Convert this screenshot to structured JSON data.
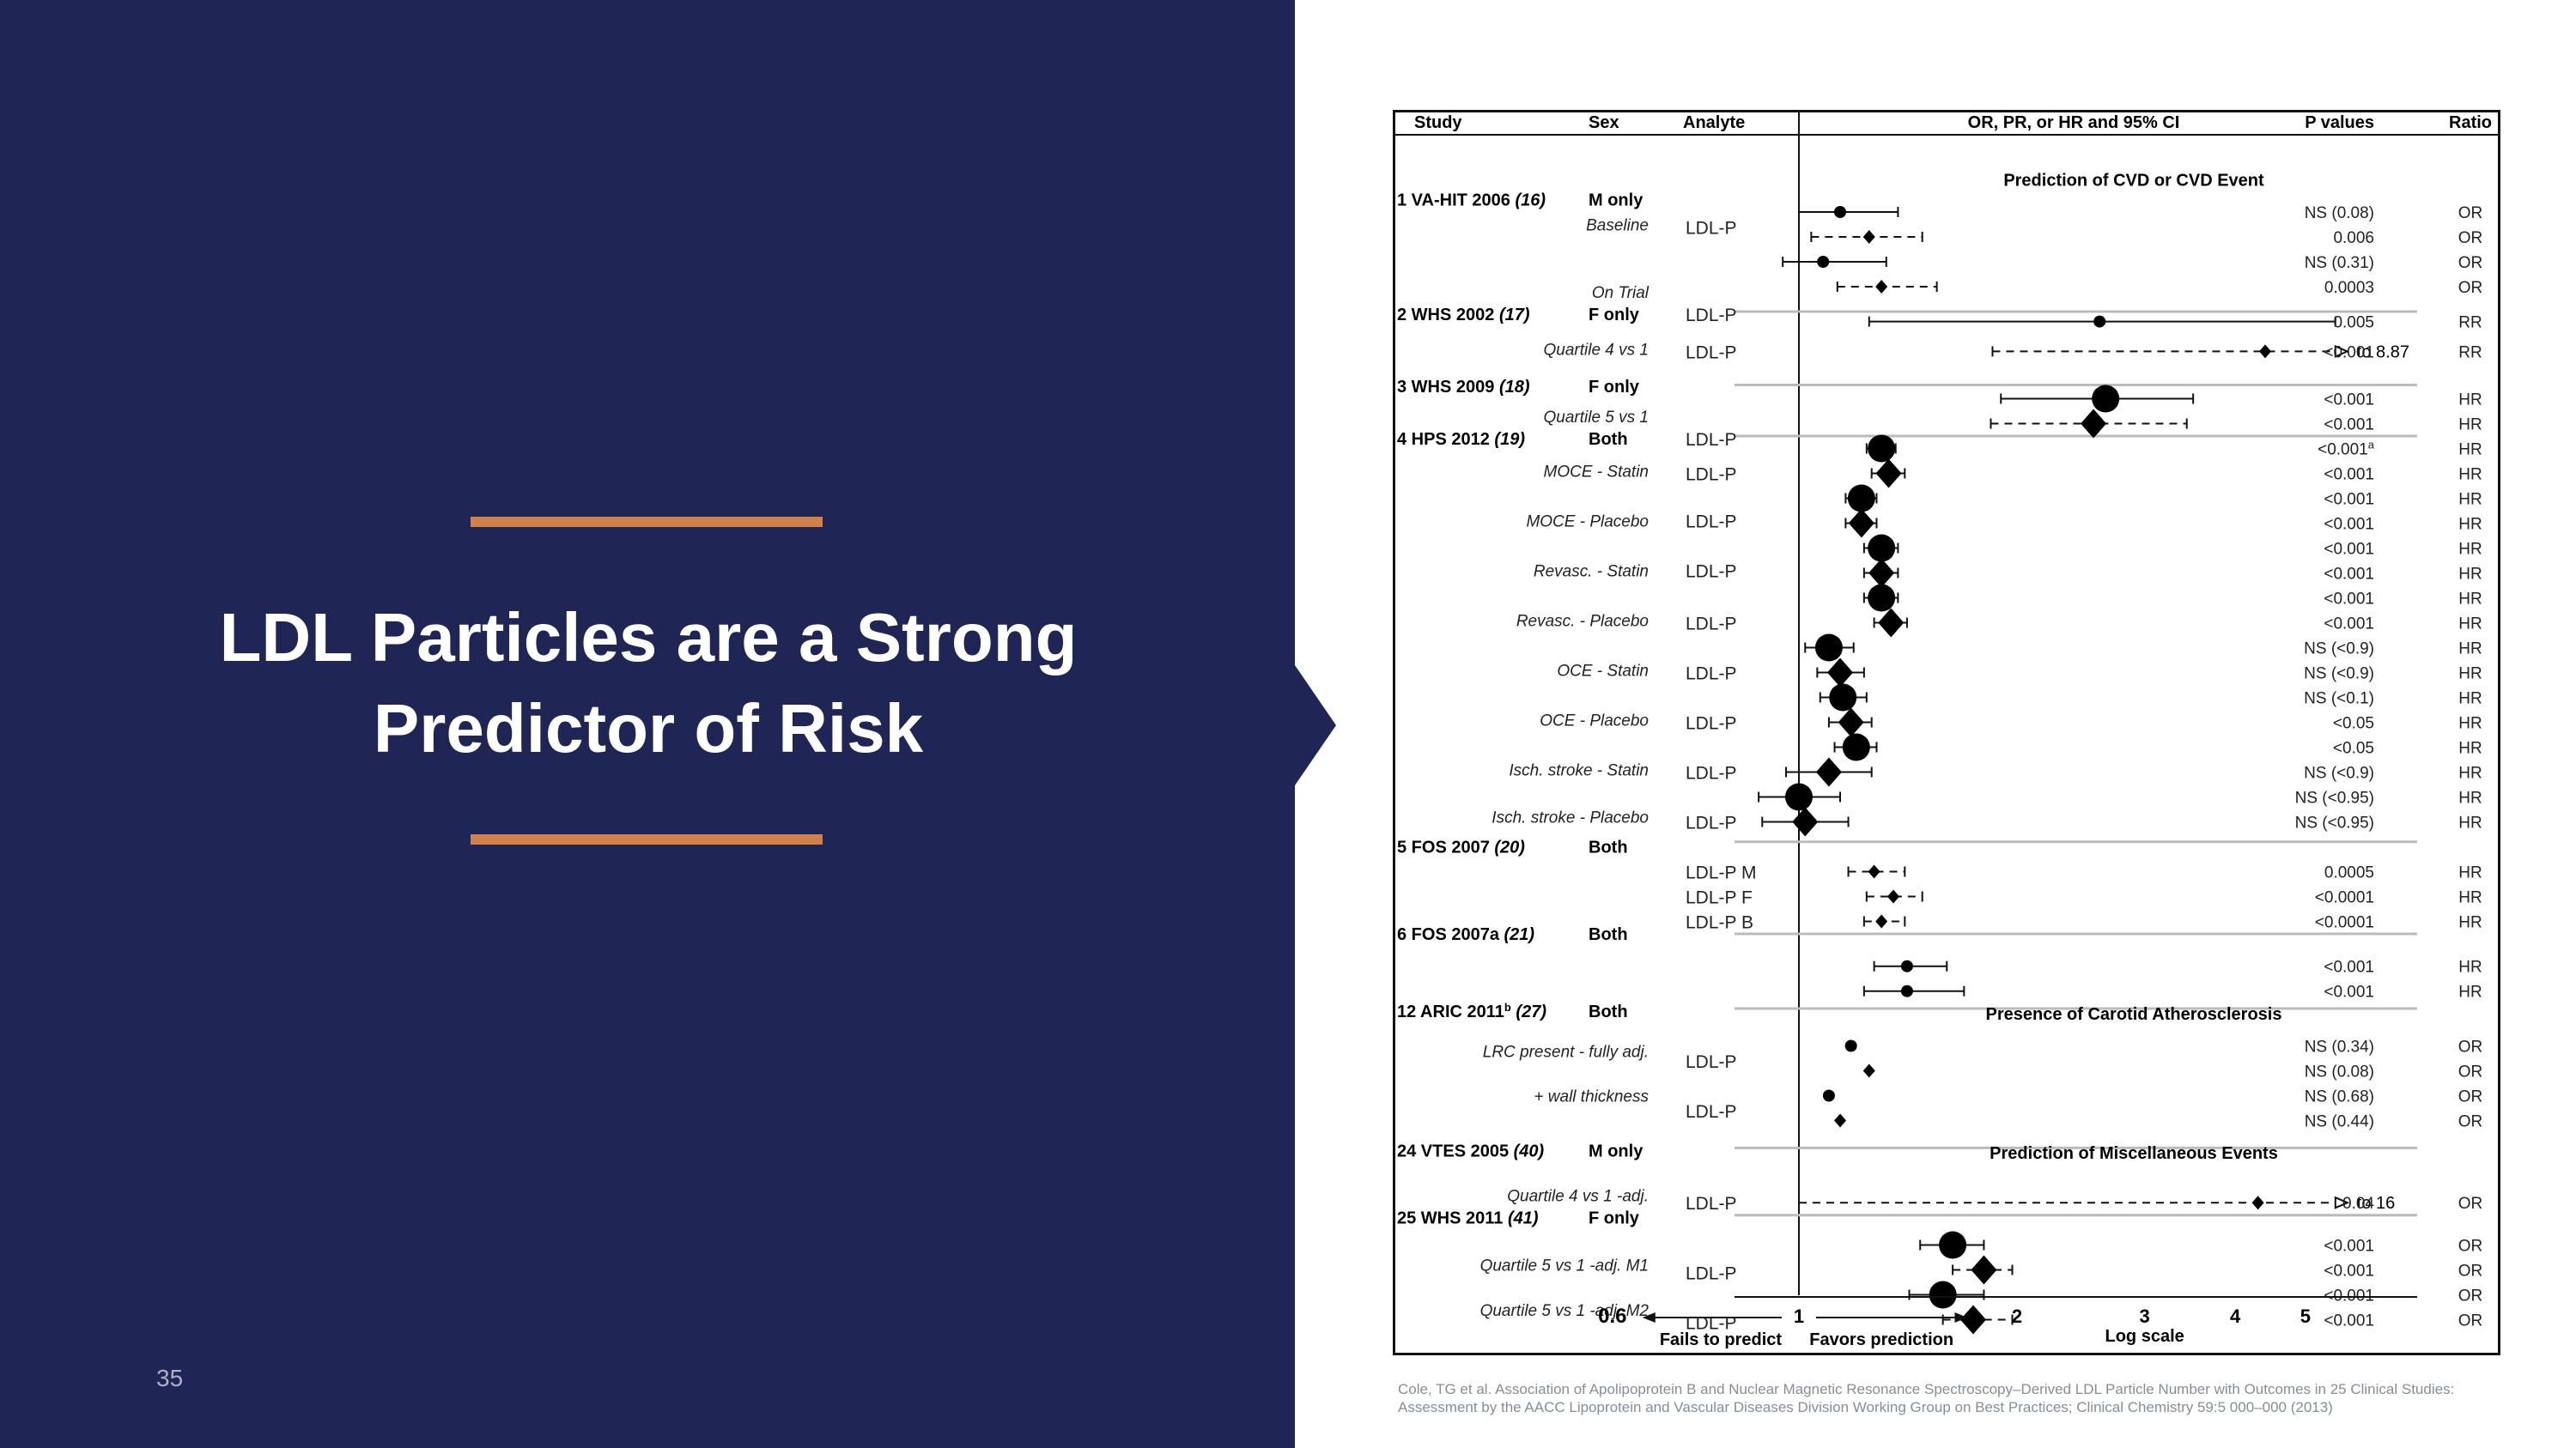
{
  "slide": {
    "title_line1": "LDL Particles are a Strong",
    "title_line2": "Predictor of Risk",
    "page_number": "35",
    "citation": "Cole, TG et al. Association of Apolipoprotein B and Nuclear Magnetic Resonance Spectroscopy–Derived LDL Particle Number with Outcomes in 25 Clinical Studies: Assessment by the AACC Lipoprotein and Vascular Diseases Division Working Group on Best Practices; Clinical Chemistry 59:5 000–000 (2013)",
    "colors": {
      "panel": "#1f2655",
      "accent": "#d0824a",
      "title": "#ffffff"
    }
  },
  "chart_data": {
    "type": "forest",
    "x_scale": "log",
    "xlim": [
      0.6,
      5.5
    ],
    "x_ticks": [
      0.6,
      1,
      2,
      3,
      4,
      5
    ],
    "reference_line": 1,
    "headers": {
      "study": "Study",
      "sex": "Sex",
      "analyte": "Analyte",
      "ci": "OR, PR, or HR and 95% CI",
      "p": "P values",
      "ratio": "Ratio"
    },
    "sections": [
      {
        "label": "Prediction of CVD or CVD Event",
        "row": 0.7
      },
      {
        "label": "Presence of Carotid Atherosclerosis",
        "row": 34.2
      },
      {
        "label": "Prediction of Miscellaneous Events",
        "row": 39.8
      }
    ],
    "axis_labels": {
      "left": "Fails to predict",
      "right": "Favors prediction",
      "scale": "Log scale",
      "left_end": "0.6"
    },
    "studies": [
      {
        "label": "1 VA-HIT 2006",
        "ref": "(16)",
        "sex": "M only",
        "row": 1.5
      },
      {
        "label": "2 WHS 2002",
        "ref": "(17)",
        "sex": "F only",
        "row": 6.1
      },
      {
        "label": "3 WHS 2009",
        "ref": "(18)",
        "sex": "F only",
        "row": 9.0
      },
      {
        "label": "4 HPS 2012",
        "ref": "(19)",
        "sex": "Both",
        "row": 11.1
      },
      {
        "label": "5 FOS 2007",
        "ref": "(20)",
        "sex": "Both",
        "row": 27.5
      },
      {
        "label": "6 FOS 2007a",
        "ref": "(21)",
        "sex": "Both",
        "row": 31.0
      },
      {
        "label": "12 ARIC 2011",
        "sup": "b",
        "ref": "(27)",
        "sex": "Both",
        "row": 34.1
      },
      {
        "label": "24 VTES 2005",
        "ref": "(40)",
        "sex": "M only",
        "row": 39.7
      },
      {
        "label": "25 WHS 2011",
        "ref": "(41)",
        "sex": "F only",
        "row": 42.4
      }
    ],
    "subgroups": [
      {
        "text": "Baseline",
        "row": 2.5
      },
      {
        "text": "On Trial",
        "row": 5.2
      },
      {
        "text": "Quartile 4 vs 1",
        "row": 7.5
      },
      {
        "text": "Quartile 5 vs 1",
        "row": 10.2
      },
      {
        "text": "MOCE - Statin",
        "row": 12.4
      },
      {
        "text": "MOCE - Placebo",
        "row": 14.4
      },
      {
        "text": "Revasc. - Statin",
        "row": 16.4
      },
      {
        "text": "Revasc. - Placebo",
        "row": 18.4
      },
      {
        "text": "OCE - Statin",
        "row": 20.4
      },
      {
        "text": "OCE - Placebo",
        "row": 22.4
      },
      {
        "text": "Isch. stroke - Statin",
        "row": 24.4
      },
      {
        "text": "Isch. stroke - Placebo",
        "row": 26.3
      },
      {
        "text": "LRC present - fully adj.",
        "row": 35.7
      },
      {
        "text": "+ wall  thickness",
        "row": 37.5
      },
      {
        "text": "Quartile 4 vs 1 -adj.",
        "row": 41.5
      },
      {
        "text": "Quartile 5 vs 1 -adj. M1",
        "row": 44.3
      },
      {
        "text": "Quartile 5 vs 1 -adj. M2",
        "row": 46.1
      }
    ],
    "analytes": [
      {
        "text": "LDL-P",
        "row": 2.6
      },
      {
        "text": "LDL-P",
        "row": 6.1
      },
      {
        "text": "LDL-P",
        "row": 7.6
      },
      {
        "text": "LDL-P",
        "row": 11.1
      },
      {
        "text": "LDL-P",
        "row": 12.5
      },
      {
        "text": "LDL-P",
        "row": 14.4
      },
      {
        "text": "LDL-P",
        "row": 16.4
      },
      {
        "text": "LDL-P",
        "row": 18.5
      },
      {
        "text": "LDL-P",
        "row": 20.5
      },
      {
        "text": "LDL-P",
        "row": 22.5
      },
      {
        "text": "LDL-P",
        "row": 24.5
      },
      {
        "text": "LDL-P",
        "row": 26.5
      },
      {
        "text": "LDL-P M",
        "row": 28.5
      },
      {
        "text": "LDL-P  F",
        "row": 29.5
      },
      {
        "text": "LDL-P B",
        "row": 30.5
      },
      {
        "text": "LDL-P",
        "row": 36.1
      },
      {
        "text": "LDL-P",
        "row": 38.1
      },
      {
        "text": "LDL-P",
        "row": 41.8
      },
      {
        "text": "LDL-P",
        "row": 44.6
      },
      {
        "text": "LDL-P",
        "row": 46.6
      }
    ],
    "rows": [
      {
        "row": 2.0,
        "est": 1.14,
        "lo": 1.0,
        "hi": 1.37,
        "marker": "dot",
        "style": "solid",
        "p": "NS (0.08)",
        "ratio": "OR"
      },
      {
        "row": 3.0,
        "est": 1.25,
        "lo": 1.04,
        "hi": 1.48,
        "marker": "small-diamond",
        "style": "dashed",
        "p": "0.006",
        "ratio": "OR"
      },
      {
        "row": 4.0,
        "est": 1.08,
        "lo": 0.95,
        "hi": 1.32,
        "marker": "dot",
        "style": "solid",
        "p": "NS (0.31)",
        "ratio": "OR"
      },
      {
        "row": 5.0,
        "est": 1.3,
        "lo": 1.13,
        "hi": 1.55,
        "marker": "small-diamond",
        "style": "dashed",
        "p": "0.0003",
        "ratio": "OR"
      },
      {
        "row": 6.4,
        "est": 2.6,
        "lo": 1.25,
        "hi": 5.5,
        "marker": "dot",
        "style": "solid",
        "p": "0.005",
        "ratio": "RR"
      },
      {
        "row": 7.6,
        "est": 4.4,
        "lo": 1.85,
        "hi": 5.5,
        "marker": "small-diamond",
        "style": "dashed",
        "p": "<0.001",
        "ratio": "RR",
        "note": "to 8.87",
        "arrow": true
      },
      {
        "row": 9.5,
        "est": 2.65,
        "lo": 1.9,
        "hi": 3.5,
        "marker": "big-dot",
        "style": "solid",
        "p": "<0.001",
        "ratio": "HR"
      },
      {
        "row": 10.5,
        "est": 2.55,
        "lo": 1.84,
        "hi": 3.43,
        "marker": "big-diamond",
        "style": "dashed",
        "p": "<0.001",
        "ratio": "HR"
      },
      {
        "row": 11.5,
        "est": 1.3,
        "lo": 1.24,
        "hi": 1.36,
        "marker": "big-dot",
        "style": "solid",
        "p": "<0.001",
        "p_sup": "a",
        "ratio": "HR"
      },
      {
        "row": 12.5,
        "est": 1.33,
        "lo": 1.26,
        "hi": 1.4,
        "marker": "big-diamond",
        "style": "solid",
        "p": "<0.001",
        "ratio": "HR"
      },
      {
        "row": 13.5,
        "est": 1.22,
        "lo": 1.16,
        "hi": 1.28,
        "marker": "big-dot",
        "style": "solid",
        "p": "<0.001",
        "ratio": "HR"
      },
      {
        "row": 14.5,
        "est": 1.22,
        "lo": 1.16,
        "hi": 1.28,
        "marker": "big-diamond",
        "style": "solid",
        "p": "<0.001",
        "ratio": "HR"
      },
      {
        "row": 15.5,
        "est": 1.3,
        "lo": 1.23,
        "hi": 1.37,
        "marker": "big-dot",
        "style": "solid",
        "p": "<0.001",
        "ratio": "HR"
      },
      {
        "row": 16.5,
        "est": 1.3,
        "lo": 1.23,
        "hi": 1.37,
        "marker": "big-diamond",
        "style": "solid",
        "p": "<0.001",
        "ratio": "HR"
      },
      {
        "row": 17.5,
        "est": 1.3,
        "lo": 1.23,
        "hi": 1.37,
        "marker": "big-dot",
        "style": "solid",
        "p": "<0.001",
        "ratio": "HR"
      },
      {
        "row": 18.5,
        "est": 1.34,
        "lo": 1.27,
        "hi": 1.41,
        "marker": "big-diamond",
        "style": "solid",
        "p": "<0.001",
        "ratio": "HR"
      },
      {
        "row": 19.5,
        "est": 1.1,
        "lo": 1.02,
        "hi": 1.19,
        "marker": "big-dot",
        "style": "solid",
        "p": "NS (<0.9)",
        "ratio": "HR"
      },
      {
        "row": 20.5,
        "est": 1.14,
        "lo": 1.06,
        "hi": 1.23,
        "marker": "big-diamond",
        "style": "solid",
        "p": "NS (<0.9)",
        "ratio": "HR"
      },
      {
        "row": 21.5,
        "est": 1.15,
        "lo": 1.07,
        "hi": 1.24,
        "marker": "big-dot",
        "style": "solid",
        "p": "NS (<0.1)",
        "ratio": "HR"
      },
      {
        "row": 22.5,
        "est": 1.18,
        "lo": 1.1,
        "hi": 1.26,
        "marker": "big-diamond",
        "style": "solid",
        "p": "<0.05",
        "ratio": "HR"
      },
      {
        "row": 23.5,
        "est": 1.2,
        "lo": 1.12,
        "hi": 1.28,
        "marker": "big-dot",
        "style": "solid",
        "p": "<0.05",
        "ratio": "HR"
      },
      {
        "row": 24.5,
        "est": 1.1,
        "lo": 0.96,
        "hi": 1.26,
        "marker": "big-diamond",
        "style": "solid",
        "p": "NS (<0.9)",
        "ratio": "HR"
      },
      {
        "row": 25.5,
        "est": 1.0,
        "lo": 0.88,
        "hi": 1.14,
        "marker": "big-dot",
        "style": "solid",
        "p": "NS (<0.95)",
        "ratio": "HR"
      },
      {
        "row": 26.5,
        "est": 1.02,
        "lo": 0.89,
        "hi": 1.17,
        "marker": "big-diamond",
        "style": "solid",
        "p": "NS (<0.95)",
        "ratio": "HR"
      },
      {
        "row": 28.5,
        "est": 1.27,
        "lo": 1.17,
        "hi": 1.4,
        "marker": "small-diamond",
        "style": "dashed",
        "p": "0.0005",
        "ratio": "HR"
      },
      {
        "row": 29.5,
        "est": 1.35,
        "lo": 1.24,
        "hi": 1.48,
        "marker": "small-diamond",
        "style": "dashed",
        "p": "<0.0001",
        "ratio": "HR"
      },
      {
        "row": 30.5,
        "est": 1.3,
        "lo": 1.23,
        "hi": 1.4,
        "marker": "small-diamond",
        "style": "dashed",
        "p": "<0.0001",
        "ratio": "HR"
      },
      {
        "row": 32.3,
        "est": 1.41,
        "lo": 1.27,
        "hi": 1.6,
        "marker": "dot",
        "style": "solid",
        "p": "<0.001",
        "ratio": "HR"
      },
      {
        "row": 33.3,
        "est": 1.41,
        "lo": 1.23,
        "hi": 1.69,
        "marker": "dot",
        "style": "solid",
        "p": "<0.001",
        "ratio": "HR"
      },
      {
        "row": 35.5,
        "est": 1.18,
        "lo": null,
        "hi": null,
        "marker": "dot",
        "style": "none",
        "p": "NS (0.34)",
        "ratio": "OR"
      },
      {
        "row": 36.5,
        "est": 1.25,
        "lo": null,
        "hi": null,
        "marker": "small-diamond",
        "style": "none",
        "p": "NS (0.08)",
        "ratio": "OR"
      },
      {
        "row": 37.5,
        "est": 1.1,
        "lo": null,
        "hi": null,
        "marker": "dot",
        "style": "none",
        "p": "NS (0.68)",
        "ratio": "OR"
      },
      {
        "row": 38.5,
        "est": 1.14,
        "lo": null,
        "hi": null,
        "marker": "small-diamond",
        "style": "none",
        "p": "NS (0.44)",
        "ratio": "OR"
      },
      {
        "row": 41.8,
        "est": 4.3,
        "lo": 1.0,
        "hi": 5.5,
        "marker": "small-diamond",
        "style": "dashed",
        "p": "0.04",
        "ratio": "OR",
        "note": "to 16",
        "arrow": true
      },
      {
        "row": 43.5,
        "est": 1.63,
        "lo": 1.47,
        "hi": 1.8,
        "marker": "big-dot",
        "style": "solid",
        "p": "<0.001",
        "ratio": "OR"
      },
      {
        "row": 44.5,
        "est": 1.8,
        "lo": 1.63,
        "hi": 1.97,
        "marker": "big-diamond",
        "style": "dashed",
        "p": "<0.001",
        "ratio": "OR"
      },
      {
        "row": 45.5,
        "est": 1.58,
        "lo": 1.42,
        "hi": 1.8,
        "marker": "big-dot",
        "style": "solid",
        "p": "<0.001",
        "ratio": "OR"
      },
      {
        "row": 46.5,
        "est": 1.74,
        "lo": 1.58,
        "hi": 1.97,
        "marker": "big-diamond",
        "style": "dashed",
        "p": "<0.001",
        "ratio": "OR"
      }
    ],
    "dividers": [
      6.0,
      8.95,
      11.0,
      27.3,
      31.0,
      34.0,
      39.6,
      42.3
    ]
  }
}
